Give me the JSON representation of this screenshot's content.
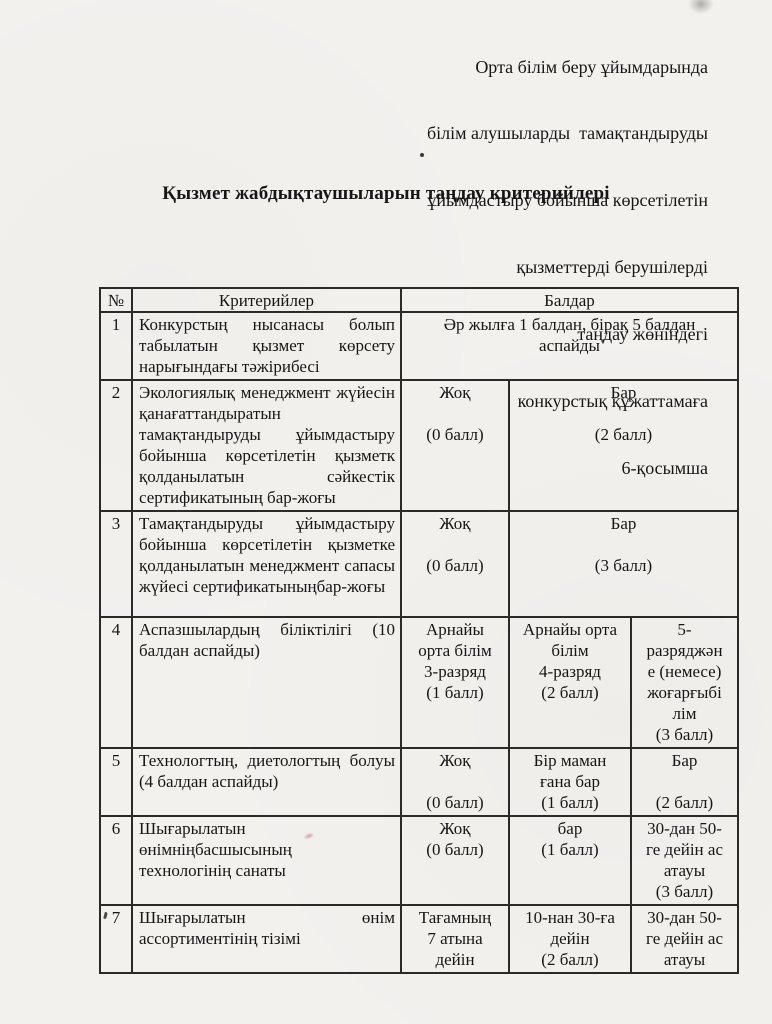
{
  "page": {
    "header_lines": [
      "Орта білім беру ұйымдарында",
      "білім алушыларды  тамақтандыруды",
      "ұйымдастыру бойынша көрсетілетін",
      "қызметтерді берушілерді",
      "таңдау жөніндегі",
      "конкурстық құжаттамаға",
      "6-қосымша"
    ],
    "title": "Қызмет жабдықтаушыларын таңдау критерийлері"
  },
  "table": {
    "col_headers": {
      "no": "№",
      "criteria": "Критерийлер",
      "points": "Балдар"
    },
    "rows": [
      {
        "no": "1",
        "criteria": "Конкурстың нысанасы болып табылатын қызмет көрсету нарығындағы тәжірибесі",
        "cells": [
          {
            "text": "Әр жылға 1 балдан, бірақ 5 балдан\nаспайды",
            "span": 3
          }
        ]
      },
      {
        "no": "2",
        "criteria": "Экологиялық менеджмент жүйесін қанағаттандыратын тамақтандыруды ұйымдастыру бойынша көрсетілетін қызметк қолданылатын сәйкестік сертификатының бар-жоғы",
        "cells": [
          {
            "text": "Жоқ\n\n(0 балл)",
            "span": 1
          },
          {
            "text": "Бар\n\n(2 балл)",
            "span": 2
          }
        ]
      },
      {
        "no": "3",
        "criteria": "Тамақтандыруды ұйымдастыру бойынша көрсетілетін қызметке қолданылатын менеджмент сапасы жүйесі сертификатыныңбар-жоғы",
        "cells": [
          {
            "text": "Жоқ\n\n(0 балл)",
            "span": 1
          },
          {
            "text": "Бар\n\n(3 балл)",
            "span": 2
          }
        ]
      },
      {
        "no": "4",
        "criteria": "Аспазшылардың біліктілігі (10 балдан аспайды)",
        "cells": [
          {
            "text": "Арнайы\nорта білім\n3-разряд\n(1 балл)",
            "span": 1
          },
          {
            "text": "Арнайы орта\nбілім\n4-разряд\n(2 балл)",
            "span": 1
          },
          {
            "text": "5-\nразряджән\nе (немесе)\nжоғарғыбі\nлім\n(3 балл)",
            "span": 1
          }
        ]
      },
      {
        "no": "5",
        "criteria": "Технологтың, диетологтың болуы (4 балдан аспайды)",
        "cells": [
          {
            "text": "Жоқ\n\n(0 балл)",
            "span": 1
          },
          {
            "text": "Бір маман\nғана бар\n(1 балл)",
            "span": 1
          },
          {
            "text": "Бар\n\n(2 балл)",
            "span": 1
          }
        ]
      },
      {
        "no": "6",
        "criteria": "Шығарылатын\nөнімніңбасшысының\nтехнологінің санаты",
        "cells": [
          {
            "text": "Жоқ\n(0 балл)",
            "span": 1
          },
          {
            "text": "бар\n(1 балл)",
            "span": 1
          },
          {
            "text": "30-дан 50-\nге дейін ас\nатауы\n(3 балл)",
            "span": 1
          }
        ]
      },
      {
        "no": "7",
        "criteria": "Шығарылатын өнім ассортиментінің тізімі",
        "cells": [
          {
            "text": "Тағамның\n7 атына\nдейін",
            "span": 1
          },
          {
            "text": "10-нан 30-ға\nдейін\n(2 балл)",
            "span": 1
          },
          {
            "text": "30-дан 50-\nге дейін ас\nатауы",
            "span": 1
          }
        ]
      }
    ]
  }
}
